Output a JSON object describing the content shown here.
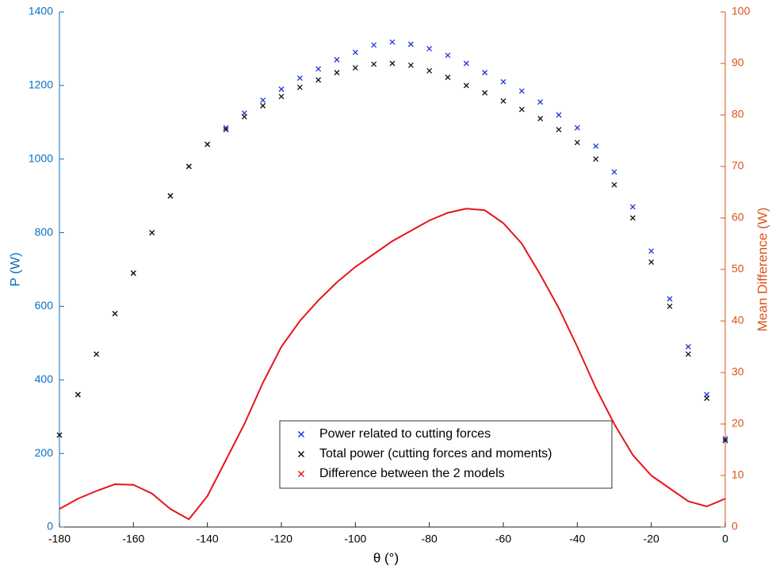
{
  "chart_data": {
    "type": "scatter",
    "xlabel": "θ (°)",
    "ylabel": "P (W)",
    "y2label": "Mean Difference (W)",
    "x": [
      -180,
      -175,
      -170,
      -165,
      -160,
      -155,
      -150,
      -145,
      -140,
      -135,
      -130,
      -125,
      -120,
      -115,
      -110,
      -105,
      -100,
      -95,
      -90,
      -85,
      -80,
      -75,
      -70,
      -65,
      -60,
      -55,
      -50,
      -45,
      -40,
      -35,
      -30,
      -25,
      -20,
      -15,
      -10,
      -5,
      0
    ],
    "series": [
      {
        "name": "Power related to cutting forces",
        "color": "#1f35d6",
        "marker": "x",
        "values": [
          250,
          360,
          470,
          580,
          690,
          800,
          900,
          980,
          1040,
          1085,
          1125,
          1160,
          1190,
          1220,
          1245,
          1270,
          1290,
          1310,
          1318,
          1312,
          1300,
          1282,
          1260,
          1235,
          1210,
          1185,
          1155,
          1120,
          1085,
          1035,
          965,
          870,
          750,
          620,
          490,
          360,
          240
        ]
      },
      {
        "name": "Total power (cutting forces and moments)",
        "color": "#111111",
        "marker": "x",
        "values": [
          250,
          360,
          470,
          580,
          690,
          800,
          900,
          980,
          1040,
          1080,
          1115,
          1145,
          1170,
          1195,
          1215,
          1235,
          1248,
          1258,
          1260,
          1255,
          1240,
          1222,
          1200,
          1180,
          1158,
          1135,
          1110,
          1080,
          1045,
          1000,
          930,
          840,
          720,
          600,
          470,
          350,
          235
        ]
      },
      {
        "name": "Difference between the 2 models",
        "color": "#e8141c",
        "marker": "line",
        "axis": "y2",
        "values": [
          3.5,
          5.5,
          7,
          8.3,
          8.2,
          6.5,
          3.5,
          1.5,
          6,
          13,
          20,
          28,
          35,
          40,
          44,
          47.5,
          50.5,
          53,
          55.5,
          57.5,
          59.5,
          61,
          61.8,
          61.5,
          59,
          55,
          49,
          42.5,
          35,
          27,
          20,
          14,
          10,
          7.5,
          5,
          4,
          5.5
        ]
      }
    ],
    "xlim": [
      -180,
      0
    ],
    "xticks": [
      -180,
      -160,
      -140,
      -120,
      -100,
      -80,
      -60,
      -40,
      -20,
      0
    ],
    "ylim": [
      0,
      1400
    ],
    "yticks": [
      0,
      200,
      400,
      600,
      800,
      1000,
      1200,
      1400
    ],
    "ycolor": "#0b6fbf",
    "y2lim": [
      0,
      100
    ],
    "y2ticks": [
      0,
      10,
      20,
      30,
      40,
      50,
      60,
      70,
      80,
      90,
      100
    ],
    "y2color": "#d95319",
    "legend": "bottom-center"
  }
}
